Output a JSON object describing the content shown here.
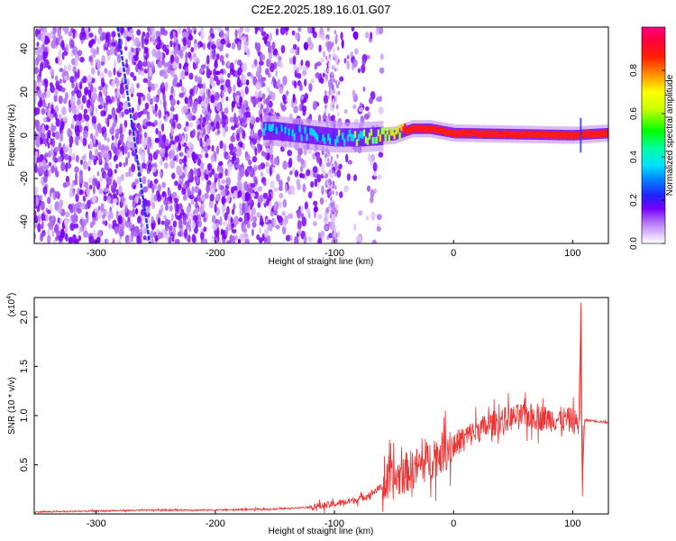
{
  "title": "C2E2.2025.189.16.01.G07",
  "chart_data": [
    {
      "type": "heatmap",
      "xlabel": "Height of straight line (km)",
      "ylabel": "Frequency (Hz)",
      "xlim": [
        -352,
        130
      ],
      "ylim": [
        -50,
        50
      ],
      "x_ticks": [
        -300,
        -200,
        -100,
        0,
        100
      ],
      "y_ticks": [
        -40,
        -20,
        0,
        20,
        40
      ],
      "colorbar": {
        "label": "Normalized spectral amplitude",
        "range": [
          0,
          1
        ],
        "ticks": [
          0.0,
          0.2,
          0.4,
          0.6,
          0.8
        ],
        "tick_labels": [
          "0.0",
          "0.2",
          "0.4",
          "0.6",
          "0.8"
        ],
        "colors": [
          "#ffffff",
          "#c99cf5",
          "#8800ff",
          "#0000ff",
          "#00d4ff",
          "#00ff00",
          "#ffff00",
          "#ff8800",
          "#ff0000",
          "#ff0080"
        ]
      },
      "features": {
        "noise_region_x": [
          -352,
          -80
        ],
        "signal_track": [
          {
            "x": -150,
            "freq": 2,
            "amp": 0.3
          },
          {
            "x": -100,
            "freq": -1,
            "amp": 0.35
          },
          {
            "x": -80,
            "freq": -1,
            "amp": 0.45
          },
          {
            "x": -50,
            "freq": 0,
            "amp": 0.6
          },
          {
            "x": -35,
            "freq": 3,
            "amp": 0.85
          },
          {
            "x": -20,
            "freq": 3,
            "amp": 0.85
          },
          {
            "x": 0,
            "freq": 1,
            "amp": 0.9
          },
          {
            "x": 50,
            "freq": 0.5,
            "amp": 0.9
          },
          {
            "x": 100,
            "freq": 0,
            "amp": 0.9
          },
          {
            "x": 130,
            "freq": 1,
            "amp": 0.9
          }
        ],
        "diagonal_line": {
          "x_start": -282,
          "freq_start": 50,
          "x_end": -255,
          "freq_end": -50
        }
      }
    },
    {
      "type": "line",
      "xlabel": "Height of straight line (km)",
      "ylabel": "SNR (10 * v/v)",
      "y_multiplier": "(x10^4)",
      "y_multiplier_base": "(x10",
      "y_multiplier_exp": "4",
      "y_multiplier_close": ")",
      "xlim": [
        -352,
        130
      ],
      "ylim": [
        0,
        2.2
      ],
      "x_ticks": [
        -300,
        -200,
        -100,
        0,
        100
      ],
      "y_ticks": [
        0.5,
        1.0,
        1.5,
        2.0
      ],
      "y_tick_labels": [
        "0.5",
        "1.0",
        "1.5",
        "2.0"
      ],
      "color": "#ee3333",
      "series": [
        {
          "x": [
            -352,
            -300,
            -250,
            -200,
            -150,
            -120,
            -100,
            -80,
            -70,
            -60,
            -50,
            -40,
            -30,
            -20,
            -10,
            0,
            10,
            20,
            30,
            40,
            50,
            60,
            70,
            80,
            90,
            100,
            105,
            107,
            108,
            110,
            115,
            130
          ],
          "values": [
            0.02,
            0.03,
            0.04,
            0.04,
            0.05,
            0.07,
            0.1,
            0.15,
            0.2,
            0.28,
            0.35,
            0.42,
            0.48,
            0.55,
            0.62,
            0.7,
            0.78,
            0.85,
            0.9,
            0.95,
            0.98,
            1.0,
            0.98,
            0.97,
            0.96,
            0.95,
            0.9,
            2.15,
            0.25,
            0.95,
            0.95,
            0.93
          ]
        }
      ]
    }
  ]
}
